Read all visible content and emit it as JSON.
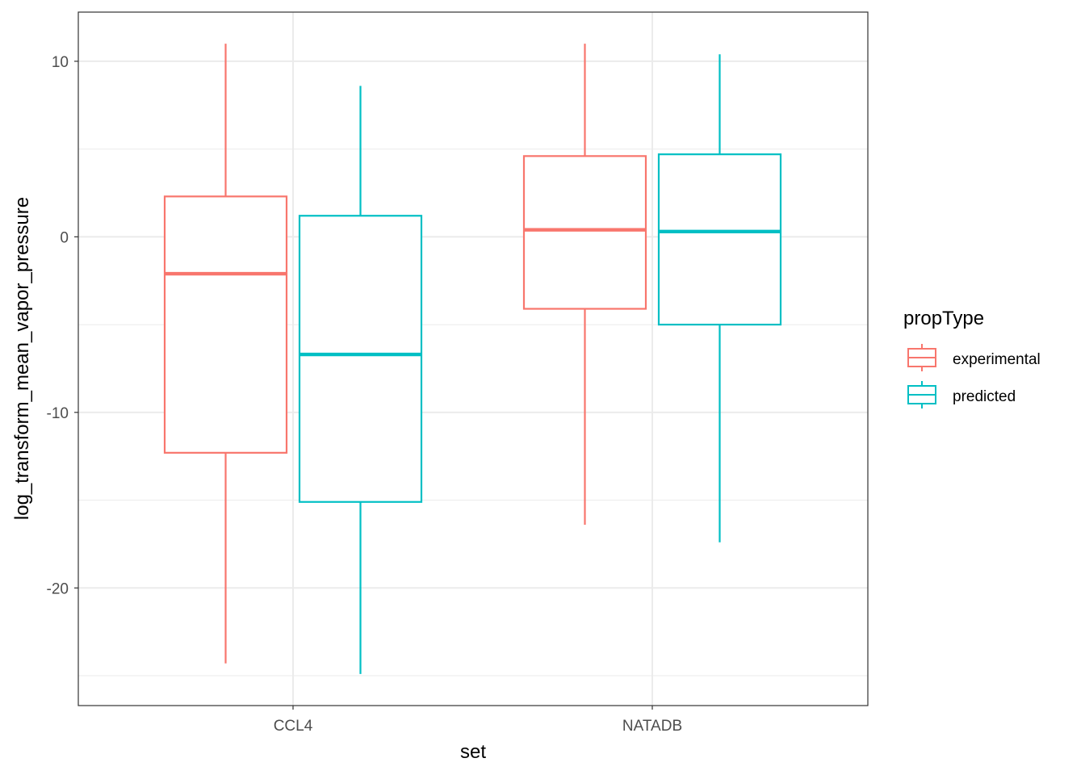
{
  "chart_data": {
    "type": "boxplot",
    "xlabel": "set",
    "ylabel": "log_transform_mean_vapor_pressure",
    "categories": [
      "CCL4",
      "NATADB"
    ],
    "ylim": [
      -26.7,
      12.8
    ],
    "yticks": [
      10,
      0,
      -10,
      -20
    ],
    "ytick_labels": [
      "10",
      "0",
      "-10",
      "-20"
    ],
    "grid": true,
    "legend": {
      "title": "propType",
      "placement": "right",
      "entries": [
        "experimental",
        "predicted"
      ]
    },
    "colors": {
      "experimental": "#F8766D",
      "predicted": "#00BFC4"
    },
    "series": [
      {
        "name": "experimental",
        "boxes": [
          {
            "category": "CCL4",
            "whisker_low": -24.3,
            "q1": -12.3,
            "median": -2.1,
            "q3": 2.3,
            "whisker_high": 11.0
          },
          {
            "category": "NATADB",
            "whisker_low": -16.4,
            "q1": -4.1,
            "median": 0.4,
            "q3": 4.6,
            "whisker_high": 11.0
          }
        ]
      },
      {
        "name": "predicted",
        "boxes": [
          {
            "category": "CCL4",
            "whisker_low": -24.9,
            "q1": -15.1,
            "median": -6.7,
            "q3": 1.2,
            "whisker_high": 8.6
          },
          {
            "category": "NATADB",
            "whisker_low": -17.4,
            "q1": -5.0,
            "median": 0.3,
            "q3": 4.7,
            "whisker_high": 10.4
          }
        ]
      }
    ]
  }
}
